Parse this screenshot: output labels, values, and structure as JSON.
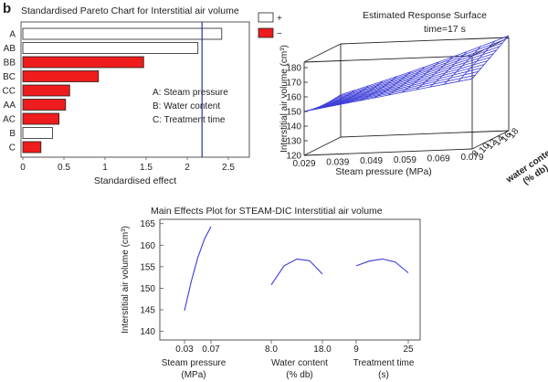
{
  "panel_label": "b",
  "chart_data": [
    {
      "type": "bar",
      "orientation": "horizontal",
      "title": "Standardised Pareto Chart for Interstitial air volume",
      "xlabel": "Standardised effect",
      "ylabel": "",
      "categories": [
        "A",
        "AB",
        "BB",
        "BC",
        "CC",
        "AA",
        "AC",
        "B",
        "C"
      ],
      "values": [
        2.42,
        2.13,
        1.47,
        0.92,
        0.57,
        0.52,
        0.44,
        0.36,
        0.22
      ],
      "signs": [
        "+",
        "+",
        "-",
        "-",
        "-",
        "-",
        "-",
        "+",
        "-"
      ],
      "xlim": [
        0,
        2.6
      ],
      "xticks": [
        "0",
        "0.5",
        "1",
        "1.5",
        "2",
        "2.5"
      ],
      "reference_line": 2.18,
      "legend": [
        {
          "label": "+",
          "color": "#ffffff"
        },
        {
          "label": "−",
          "color": "#ee1c1c"
        }
      ],
      "annotations": [
        "A:  Steam pressure",
        "B:  Water content",
        "C:  Treatment time"
      ]
    },
    {
      "type": "surface",
      "title": "Estimated Response Surface",
      "subtitle": "time=17 s",
      "xlabel": "Steam pressure (MPa)",
      "ylabel": "water content (% db)",
      "zlabel": "Interstitial air volume (cm³)",
      "xticks": [
        "0.029",
        "0.039",
        "0.049",
        "0.059",
        "0.069",
        "0.079"
      ],
      "yticks": [
        "8",
        "10",
        "12",
        "14",
        "16",
        "18"
      ],
      "zticks": [
        "120",
        "130",
        "140",
        "150",
        "160",
        "170",
        "180"
      ],
      "zlim": [
        120,
        180
      ],
      "corner_values": {
        "x_low_y_low": 150,
        "x_high_y_low": 168,
        "x_low_y_high": 149,
        "x_high_y_high": 180
      }
    },
    {
      "type": "line",
      "title": "Main Effects Plot for STEAM-DIC Interstitial air volume",
      "ylabel": "Interstitial air volume (cm³)",
      "ylim": [
        138,
        166
      ],
      "yticks": [
        "140",
        "145",
        "150",
        "155",
        "160",
        "165"
      ],
      "factors": [
        {
          "label": "Steam pressure",
          "unit": "(MPa)",
          "ticks": [
            "0.03",
            "0.07"
          ],
          "x": [
            0.029,
            0.039,
            0.049,
            0.059,
            0.069
          ],
          "y": [
            144.8,
            151.5,
            157.1,
            161.4,
            164.3
          ]
        },
        {
          "label": "Water content",
          "unit": "(% db)",
          "ticks": [
            "8.0",
            "18.0"
          ],
          "x": [
            8,
            10.5,
            13,
            15.5,
            18
          ],
          "y": [
            150.8,
            155.2,
            156.8,
            156.4,
            153.3
          ]
        },
        {
          "label": "Treatment time",
          "unit": "(s)",
          "ticks": [
            "9",
            "25"
          ],
          "x": [
            9,
            13,
            17,
            21,
            25
          ],
          "y": [
            155.2,
            156.3,
            156.8,
            156.1,
            153.6
          ]
        }
      ]
    }
  ]
}
